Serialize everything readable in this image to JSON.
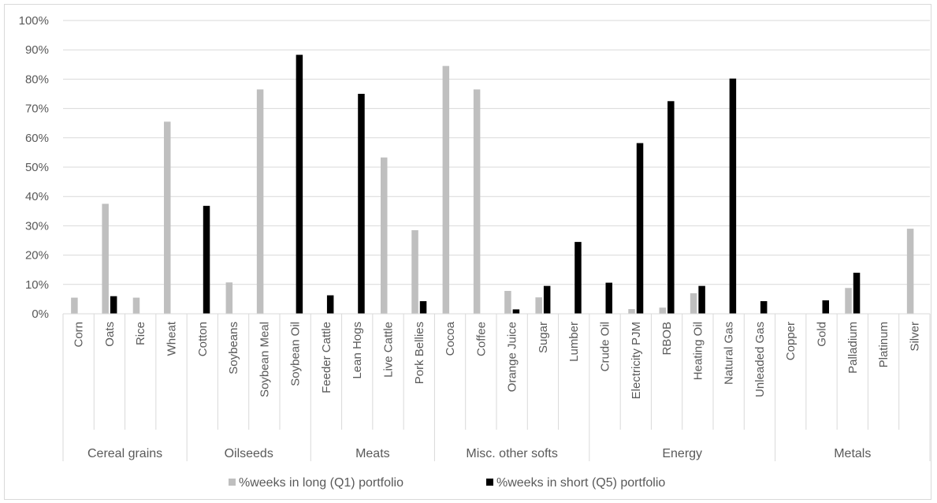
{
  "chart_data": {
    "type": "bar",
    "categories": [
      "Corn",
      "Oats",
      "Rice",
      "Wheat",
      "Cotton",
      "Soybeans",
      "Soybean Meal",
      "Soybean Oil",
      "Feeder Cattle",
      "Lean Hogs",
      "Live Cattle",
      "Pork Bellies",
      "Cocoa",
      "Coffee",
      "Orange Juice",
      "Sugar",
      "Lumber",
      "Crude Oil",
      "Electricity PJM",
      "RBOB",
      "Heating Oil",
      "Natural Gas",
      "Unleaded Gas",
      "Copper",
      "Gold",
      "Palladium",
      "Platinum",
      "Silver"
    ],
    "groups": [
      {
        "label": "Cereal grains",
        "count": 4
      },
      {
        "label": "Oilseeds",
        "count": 4
      },
      {
        "label": "Meats",
        "count": 4
      },
      {
        "label": "Misc. other softs",
        "count": 5
      },
      {
        "label": "Energy",
        "count": 6
      },
      {
        "label": "Metals",
        "count": 5
      }
    ],
    "series": [
      {
        "name": "%weeks in long (Q1) portfolio",
        "color": "#bfbfbf",
        "values": [
          5.5,
          37.5,
          5.5,
          65.5,
          0,
          10.7,
          76.5,
          0,
          0,
          0,
          53.3,
          28.5,
          84.5,
          76.5,
          7.8,
          5.6,
          0,
          0,
          1.6,
          2.1,
          7.0,
          0,
          0,
          0,
          0,
          8.8,
          0,
          29.0
        ]
      },
      {
        "name": "%weeks in short (Q5) portfolio",
        "color": "#000000",
        "values": [
          0,
          6.0,
          0,
          0,
          36.8,
          0,
          0,
          88.3,
          6.3,
          75.0,
          0,
          4.3,
          0,
          0,
          1.5,
          9.5,
          24.5,
          10.6,
          58.2,
          72.5,
          9.5,
          80.2,
          4.3,
          0,
          4.6,
          14.0,
          0,
          0
        ]
      }
    ],
    "yticks": [
      "0%",
      "10%",
      "20%",
      "30%",
      "40%",
      "50%",
      "60%",
      "70%",
      "80%",
      "90%",
      "100%"
    ],
    "ylim": [
      0,
      100
    ],
    "grid": true,
    "legend": "bottom"
  }
}
